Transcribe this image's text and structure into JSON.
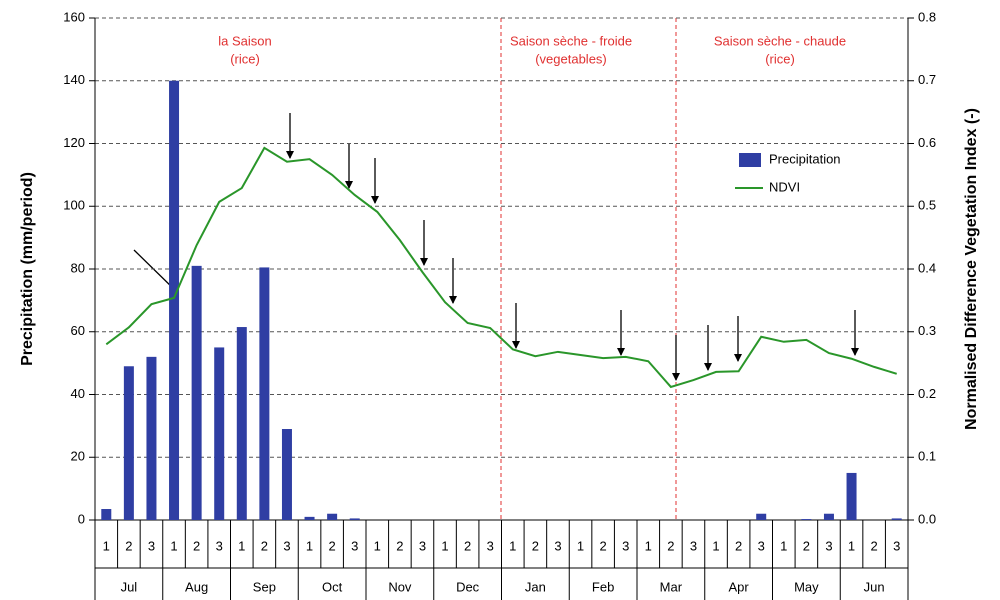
{
  "chart_data": {
    "type": "bar_line",
    "y_label": "Precipitation (mm/period)",
    "y2_label": "Normalised Difference Vegetation Index (-)",
    "annotations": [
      "la Saison",
      "(rice)",
      "Saison sèche - froide",
      "(vegetables)",
      "Saison sèche - chaude",
      "(rice)"
    ],
    "categories": [
      "1",
      "2",
      "3",
      "1",
      "2",
      "3",
      "1",
      "2",
      "3",
      "1",
      "2",
      "3",
      "1",
      "2",
      "3",
      "1",
      "2",
      "3",
      "1",
      "2",
      "3",
      "1",
      "2",
      "3",
      "1",
      "2",
      "3",
      "1",
      "2",
      "3",
      "1",
      "2",
      "3",
      "1",
      "2",
      "3"
    ],
    "months": [
      "Jul",
      "Aug",
      "Sep",
      "Oct",
      "Nov",
      "Dec",
      "Jan",
      "Feb",
      "Mar",
      "Apr",
      "May",
      "Jun"
    ],
    "series": [
      {
        "name": "Precipitation",
        "color": "#2f3ea3",
        "values": [
          3.5,
          49,
          52,
          140,
          81,
          55,
          61.5,
          80.5,
          29,
          1,
          2,
          0.5,
          0,
          0,
          0,
          0,
          0,
          0,
          0,
          0,
          0,
          0,
          0,
          0,
          0,
          0,
          0,
          0,
          0,
          2,
          0,
          0.3,
          2,
          15,
          0,
          0.5
        ]
      },
      {
        "name": "NDVI",
        "color": "#2a962a",
        "axis": "y2",
        "values": [
          0.28,
          0.307,
          0.344,
          0.354,
          0.438,
          0.507,
          0.529,
          0.593,
          0.571,
          0.575,
          0.55,
          0.518,
          0.491,
          0.446,
          0.395,
          0.347,
          0.314,
          0.306,
          0.272,
          0.261,
          0.268,
          0.263,
          0.258,
          0.26,
          0.253,
          0.212,
          0.223,
          0.236,
          0.237,
          0.292,
          0.284,
          0.287,
          0.266,
          0.257,
          0.244,
          0.233
        ]
      }
    ],
    "ylim": [
      0,
      160
    ],
    "yticks": [
      0,
      20,
      40,
      60,
      80,
      100,
      120,
      140,
      160
    ],
    "y2lim": [
      0,
      0.8
    ],
    "y2ticks": [
      {
        "value": 0,
        "label": "0.0"
      },
      0.1,
      0.2,
      0.3,
      0.4,
      0.5,
      0.6,
      0.7,
      0.8
    ],
    "grid": true
  }
}
